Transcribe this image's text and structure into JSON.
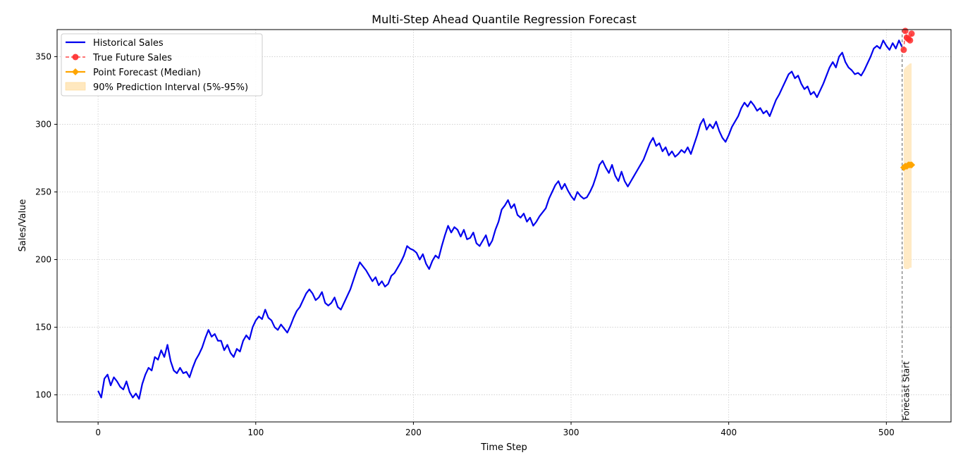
{
  "chart_data": {
    "type": "line",
    "title": "Multi-Step Ahead Quantile Regression Forecast",
    "xlabel": "Time Step",
    "ylabel": "Sales/Value",
    "xlim": [
      -26,
      541
    ],
    "ylim": [
      80,
      370
    ],
    "x_ticks": [
      0,
      100,
      200,
      300,
      400,
      500
    ],
    "y_ticks": [
      100,
      150,
      200,
      250,
      300,
      350
    ],
    "grid": true,
    "legend_position": "top-left",
    "colors": {
      "historical": "#0000ee",
      "true_future": "#ff2a2a",
      "forecast": "#ffa500",
      "interval": "#ffe8bf",
      "forecast_line": "#777777"
    },
    "forecast_start_x": 510,
    "forecast_start_label": "Forecast Start",
    "series": [
      {
        "name": "Historical Sales",
        "style": "line",
        "points": [
          [
            0,
            103
          ],
          [
            2,
            98
          ],
          [
            4,
            112
          ],
          [
            6,
            115
          ],
          [
            8,
            107
          ],
          [
            10,
            113
          ],
          [
            12,
            110
          ],
          [
            14,
            106
          ],
          [
            16,
            104
          ],
          [
            18,
            110
          ],
          [
            20,
            102
          ],
          [
            22,
            98
          ],
          [
            24,
            101
          ],
          [
            26,
            97
          ],
          [
            28,
            108
          ],
          [
            30,
            115
          ],
          [
            32,
            120
          ],
          [
            34,
            118
          ],
          [
            36,
            128
          ],
          [
            38,
            126
          ],
          [
            40,
            133
          ],
          [
            42,
            128
          ],
          [
            44,
            137
          ],
          [
            46,
            125
          ],
          [
            48,
            118
          ],
          [
            50,
            116
          ],
          [
            52,
            120
          ],
          [
            54,
            116
          ],
          [
            56,
            117
          ],
          [
            58,
            113
          ],
          [
            60,
            120
          ],
          [
            62,
            126
          ],
          [
            64,
            130
          ],
          [
            66,
            135
          ],
          [
            68,
            142
          ],
          [
            70,
            148
          ],
          [
            72,
            143
          ],
          [
            74,
            145
          ],
          [
            76,
            140
          ],
          [
            78,
            140
          ],
          [
            80,
            133
          ],
          [
            82,
            137
          ],
          [
            84,
            131
          ],
          [
            86,
            128
          ],
          [
            88,
            134
          ],
          [
            90,
            132
          ],
          [
            92,
            140
          ],
          [
            94,
            144
          ],
          [
            96,
            141
          ],
          [
            98,
            150
          ],
          [
            100,
            155
          ],
          [
            102,
            158
          ],
          [
            104,
            156
          ],
          [
            106,
            163
          ],
          [
            108,
            157
          ],
          [
            110,
            155
          ],
          [
            112,
            150
          ],
          [
            114,
            148
          ],
          [
            116,
            152
          ],
          [
            118,
            149
          ],
          [
            120,
            146
          ],
          [
            122,
            151
          ],
          [
            124,
            157
          ],
          [
            126,
            162
          ],
          [
            128,
            165
          ],
          [
            130,
            170
          ],
          [
            132,
            175
          ],
          [
            134,
            178
          ],
          [
            136,
            175
          ],
          [
            138,
            170
          ],
          [
            140,
            172
          ],
          [
            142,
            176
          ],
          [
            144,
            168
          ],
          [
            146,
            166
          ],
          [
            148,
            168
          ],
          [
            150,
            172
          ],
          [
            152,
            165
          ],
          [
            154,
            163
          ],
          [
            156,
            168
          ],
          [
            158,
            173
          ],
          [
            160,
            178
          ],
          [
            162,
            185
          ],
          [
            164,
            192
          ],
          [
            166,
            198
          ],
          [
            168,
            195
          ],
          [
            170,
            192
          ],
          [
            172,
            188
          ],
          [
            174,
            184
          ],
          [
            176,
            187
          ],
          [
            178,
            181
          ],
          [
            180,
            184
          ],
          [
            182,
            180
          ],
          [
            184,
            182
          ],
          [
            186,
            188
          ],
          [
            188,
            190
          ],
          [
            190,
            194
          ],
          [
            192,
            198
          ],
          [
            194,
            203
          ],
          [
            196,
            210
          ],
          [
            198,
            208
          ],
          [
            200,
            207
          ],
          [
            202,
            205
          ],
          [
            204,
            200
          ],
          [
            206,
            204
          ],
          [
            208,
            197
          ],
          [
            210,
            193
          ],
          [
            212,
            199
          ],
          [
            214,
            203
          ],
          [
            216,
            201
          ],
          [
            218,
            210
          ],
          [
            220,
            218
          ],
          [
            222,
            225
          ],
          [
            224,
            220
          ],
          [
            226,
            224
          ],
          [
            228,
            222
          ],
          [
            230,
            217
          ],
          [
            232,
            222
          ],
          [
            234,
            215
          ],
          [
            236,
            216
          ],
          [
            238,
            220
          ],
          [
            240,
            212
          ],
          [
            242,
            210
          ],
          [
            244,
            214
          ],
          [
            246,
            218
          ],
          [
            248,
            210
          ],
          [
            250,
            214
          ],
          [
            252,
            222
          ],
          [
            254,
            228
          ],
          [
            256,
            237
          ],
          [
            258,
            240
          ],
          [
            260,
            244
          ],
          [
            262,
            238
          ],
          [
            264,
            241
          ],
          [
            266,
            233
          ],
          [
            268,
            231
          ],
          [
            270,
            234
          ],
          [
            272,
            228
          ],
          [
            274,
            231
          ],
          [
            276,
            225
          ],
          [
            278,
            228
          ],
          [
            280,
            232
          ],
          [
            282,
            235
          ],
          [
            284,
            238
          ],
          [
            286,
            245
          ],
          [
            288,
            250
          ],
          [
            290,
            255
          ],
          [
            292,
            258
          ],
          [
            294,
            252
          ],
          [
            296,
            256
          ],
          [
            298,
            251
          ],
          [
            300,
            247
          ],
          [
            302,
            244
          ],
          [
            304,
            250
          ],
          [
            306,
            247
          ],
          [
            308,
            245
          ],
          [
            310,
            246
          ],
          [
            312,
            250
          ],
          [
            314,
            255
          ],
          [
            316,
            262
          ],
          [
            318,
            270
          ],
          [
            320,
            273
          ],
          [
            322,
            268
          ],
          [
            324,
            264
          ],
          [
            326,
            270
          ],
          [
            328,
            262
          ],
          [
            330,
            258
          ],
          [
            332,
            265
          ],
          [
            334,
            258
          ],
          [
            336,
            254
          ],
          [
            338,
            258
          ],
          [
            340,
            262
          ],
          [
            342,
            266
          ],
          [
            344,
            270
          ],
          [
            346,
            274
          ],
          [
            348,
            280
          ],
          [
            350,
            286
          ],
          [
            352,
            290
          ],
          [
            354,
            284
          ],
          [
            356,
            286
          ],
          [
            358,
            280
          ],
          [
            360,
            283
          ],
          [
            362,
            277
          ],
          [
            364,
            280
          ],
          [
            366,
            276
          ],
          [
            368,
            278
          ],
          [
            370,
            281
          ],
          [
            372,
            279
          ],
          [
            374,
            283
          ],
          [
            376,
            278
          ],
          [
            378,
            285
          ],
          [
            380,
            292
          ],
          [
            382,
            300
          ],
          [
            384,
            304
          ],
          [
            386,
            296
          ],
          [
            388,
            300
          ],
          [
            390,
            297
          ],
          [
            392,
            302
          ],
          [
            394,
            295
          ],
          [
            396,
            290
          ],
          [
            398,
            287
          ],
          [
            400,
            292
          ],
          [
            402,
            298
          ],
          [
            404,
            302
          ],
          [
            406,
            306
          ],
          [
            408,
            312
          ],
          [
            410,
            316
          ],
          [
            412,
            313
          ],
          [
            414,
            317
          ],
          [
            416,
            314
          ],
          [
            418,
            310
          ],
          [
            420,
            312
          ],
          [
            422,
            308
          ],
          [
            424,
            310
          ],
          [
            426,
            306
          ],
          [
            428,
            312
          ],
          [
            430,
            318
          ],
          [
            432,
            322
          ],
          [
            434,
            327
          ],
          [
            436,
            332
          ],
          [
            438,
            337
          ],
          [
            440,
            339
          ],
          [
            442,
            334
          ],
          [
            444,
            336
          ],
          [
            446,
            330
          ],
          [
            448,
            326
          ],
          [
            450,
            328
          ],
          [
            452,
            322
          ],
          [
            454,
            324
          ],
          [
            456,
            320
          ],
          [
            458,
            325
          ],
          [
            460,
            330
          ],
          [
            462,
            336
          ],
          [
            464,
            342
          ],
          [
            466,
            346
          ],
          [
            468,
            342
          ],
          [
            470,
            350
          ],
          [
            472,
            353
          ],
          [
            474,
            346
          ],
          [
            476,
            342
          ],
          [
            478,
            340
          ],
          [
            480,
            337
          ],
          [
            482,
            338
          ],
          [
            484,
            336
          ],
          [
            486,
            340
          ],
          [
            488,
            345
          ],
          [
            490,
            350
          ],
          [
            492,
            356
          ],
          [
            494,
            358
          ],
          [
            496,
            356
          ],
          [
            498,
            362
          ],
          [
            500,
            358
          ],
          [
            502,
            355
          ],
          [
            504,
            360
          ],
          [
            506,
            356
          ],
          [
            508,
            362
          ],
          [
            510,
            357
          ]
        ]
      },
      {
        "name": "True Future Sales",
        "style": "dashed-markers",
        "points": [
          [
            511,
            355
          ],
          [
            512,
            369
          ],
          [
            513,
            364
          ],
          [
            514,
            363
          ],
          [
            515,
            362
          ],
          [
            516,
            367
          ]
        ]
      },
      {
        "name": "Point Forecast (Median)",
        "style": "line-diamonds",
        "points": [
          [
            511,
            268
          ],
          [
            512,
            269
          ],
          [
            513,
            269
          ],
          [
            514,
            270
          ],
          [
            515,
            270
          ],
          [
            516,
            270
          ]
        ]
      },
      {
        "name": "90% Prediction Interval (5%-95%)",
        "style": "band",
        "x": [
          511,
          512,
          513,
          514,
          515,
          516
        ],
        "lower": [
          194,
          193,
          193,
          193,
          194,
          194
        ],
        "upper": [
          340,
          342,
          343,
          344,
          345,
          345
        ]
      }
    ]
  }
}
